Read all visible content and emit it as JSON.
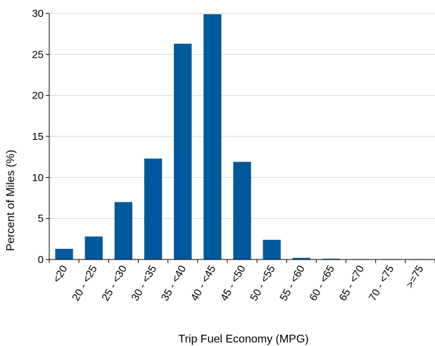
{
  "chart_data": {
    "type": "bar",
    "categories": [
      "<20",
      "20 - <25",
      "25 - <30",
      "30 - <35",
      "35 - <40",
      "40 - <45",
      "45 - <50",
      "50 - <55",
      "55 - <60",
      "60 - <65",
      "65 - <70",
      "70 - <75",
      ">=75"
    ],
    "values": [
      1.3,
      2.8,
      7.0,
      12.3,
      26.3,
      29.9,
      11.9,
      2.4,
      0.2,
      0.1,
      0.05,
      0.05,
      0.05
    ],
    "title": "",
    "xlabel": "Trip Fuel Economy (MPG)",
    "ylabel": "Percent of Miles (%)",
    "ylim": [
      0,
      30
    ],
    "yticks": [
      0,
      5,
      10,
      15,
      20,
      25,
      30
    ],
    "grid": "horizontal",
    "bar_color": "#00599c",
    "grid_color": "#d9d9d9"
  }
}
